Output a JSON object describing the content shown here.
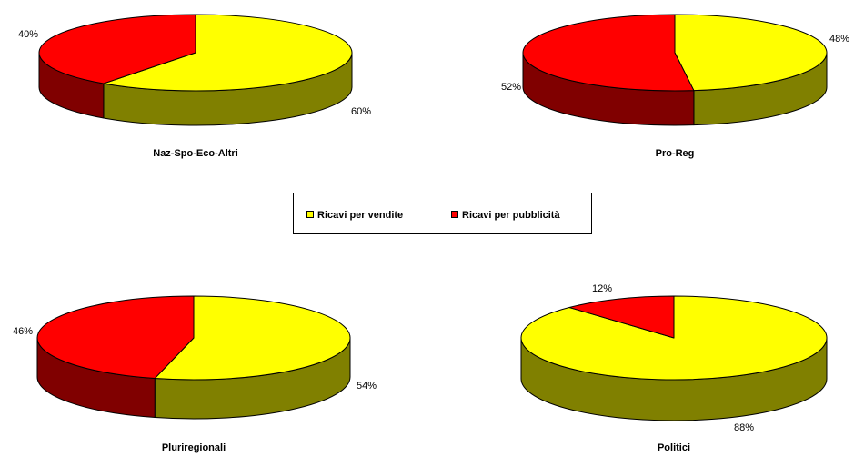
{
  "chart_data": [
    {
      "type": "pie",
      "title": "Naz-Spo-Eco-Altri",
      "categories": [
        "Ricavi per vendite",
        "Ricavi per pubblicità"
      ],
      "values": [
        60,
        40
      ],
      "labels": [
        "60%",
        "40%"
      ]
    },
    {
      "type": "pie",
      "title": "Pro-Reg",
      "categories": [
        "Ricavi per vendite",
        "Ricavi per pubblicità"
      ],
      "values": [
        48,
        52
      ],
      "labels": [
        "48%",
        "52%"
      ]
    },
    {
      "type": "pie",
      "title": "Pluriregionali",
      "categories": [
        "Ricavi per vendite",
        "Ricavi per pubblicità"
      ],
      "values": [
        54,
        46
      ],
      "labels": [
        "54%",
        "46%"
      ]
    },
    {
      "type": "pie",
      "title": "Politici",
      "categories": [
        "Ricavi per vendite",
        "Ricavi per pubblicità"
      ],
      "values": [
        88,
        12
      ],
      "labels": [
        "88%",
        "12%"
      ]
    }
  ],
  "legend": {
    "placement": "center",
    "items": [
      {
        "label": "Ricavi per vendite",
        "color": "#ffff00",
        "side": "#808000"
      },
      {
        "label": "Ricavi per pubblicità",
        "color": "#ff0000",
        "side": "#800000"
      }
    ]
  }
}
